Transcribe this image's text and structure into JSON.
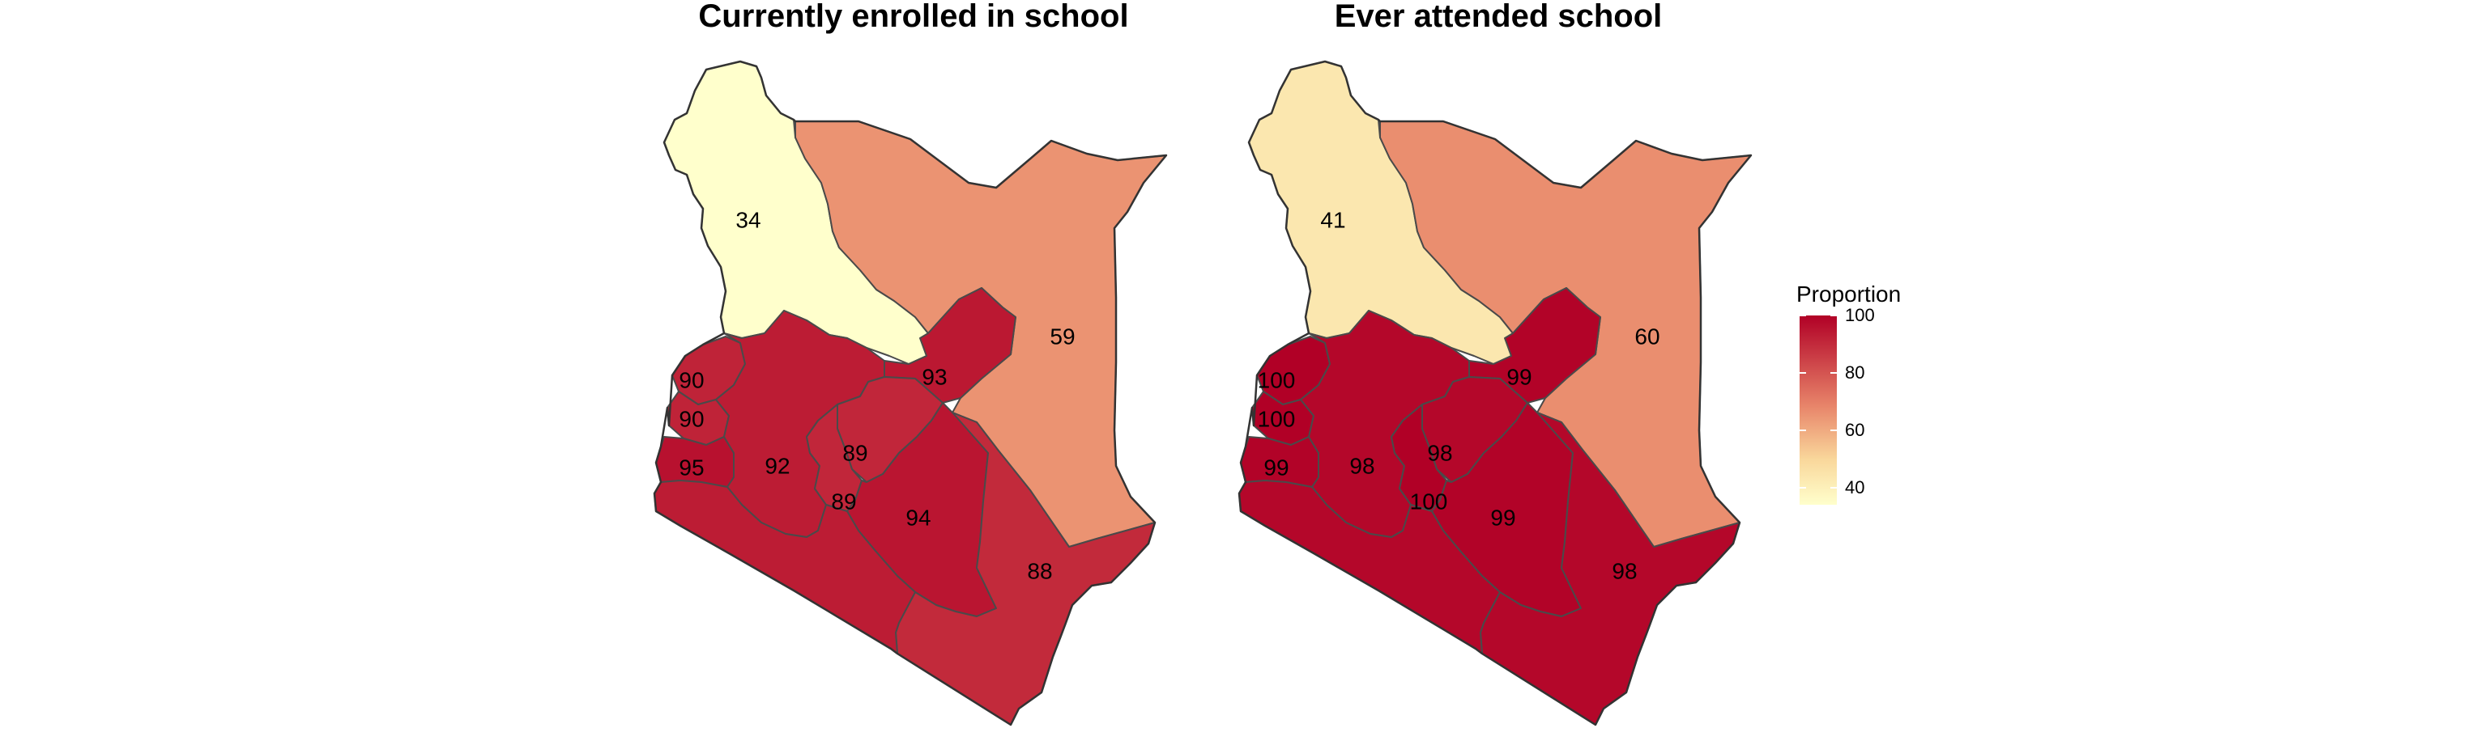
{
  "panels": [
    {
      "title": "Currently enrolled in school",
      "regions": [
        {
          "id": "north-west",
          "value": 34
        },
        {
          "id": "north-east",
          "value": 59
        },
        {
          "id": "east-central",
          "value": 93
        },
        {
          "id": "west-1",
          "value": 90
        },
        {
          "id": "west-2",
          "value": 90
        },
        {
          "id": "west-3",
          "value": 95
        },
        {
          "id": "rift",
          "value": 92
        },
        {
          "id": "central",
          "value": 89
        },
        {
          "id": "nairobi",
          "value": 89
        },
        {
          "id": "south-east",
          "value": 94
        },
        {
          "id": "coast",
          "value": 88
        }
      ]
    },
    {
      "title": "Ever attended school",
      "regions": [
        {
          "id": "north-west",
          "value": 41
        },
        {
          "id": "north-east",
          "value": 60
        },
        {
          "id": "east-central",
          "value": 99
        },
        {
          "id": "west-1",
          "value": 100
        },
        {
          "id": "west-2",
          "value": 100
        },
        {
          "id": "west-3",
          "value": 99
        },
        {
          "id": "rift",
          "value": 98
        },
        {
          "id": "central",
          "value": 98
        },
        {
          "id": "nairobi",
          "value": 100
        },
        {
          "id": "south-east",
          "value": 99
        },
        {
          "id": "coast",
          "value": 98
        }
      ]
    }
  ],
  "legend": {
    "title": "Proportion",
    "ticks": [
      100,
      80,
      60,
      40
    ],
    "scale_min": 34,
    "scale_max": 100,
    "colors": [
      "#ffffcc",
      "#f9d79b",
      "#e8856a",
      "#b10026"
    ]
  }
}
